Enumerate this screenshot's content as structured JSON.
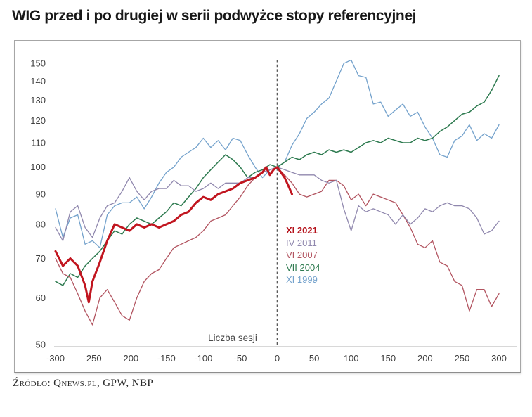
{
  "title": "WIG przed i po drugiej w serii podwyżce stopy referencyjnej",
  "source": "Źródło: Qnews.pl, GPW, NBP",
  "chart_data": {
    "type": "line",
    "xlabel": "Liczba sesji",
    "ylabel": "",
    "yscale": "log",
    "xlim": [
      -300,
      300
    ],
    "ylim": [
      50,
      155
    ],
    "base_value_at_event": 100,
    "event_line_x": 0,
    "grid": "off",
    "legend_position": "center-right of event line",
    "x_ticks": [
      -300,
      -250,
      -200,
      -150,
      -100,
      -50,
      0,
      50,
      100,
      150,
      200,
      250,
      300
    ],
    "y_ticks": [
      50,
      60,
      70,
      80,
      90,
      100,
      110,
      120,
      130,
      140,
      150
    ],
    "legend": [
      {
        "label": "XI 2021",
        "color": "#b5121b",
        "bold": true
      },
      {
        "label": "IV 2011",
        "color": "#9088ae",
        "bold": false
      },
      {
        "label": "VI 2007",
        "color": "#b25460",
        "bold": false
      },
      {
        "label": "VII 2004",
        "color": "#2d7a4f",
        "bold": false
      },
      {
        "label": "XI 1999",
        "color": "#74a2cc",
        "bold": false
      }
    ],
    "series": [
      {
        "name": "XI 1999",
        "color": "#74a2cc",
        "line_width": 1.3,
        "x_start": -300,
        "x_step": 10,
        "y": [
          85,
          76,
          82,
          83,
          74,
          75,
          73,
          83,
          86,
          87,
          87,
          89,
          85,
          89,
          94,
          98,
          100,
          104,
          106,
          108,
          112,
          108,
          111,
          107,
          112,
          111,
          105,
          100,
          96,
          99,
          100,
          102,
          109,
          114,
          121,
          124,
          128,
          131,
          140,
          150,
          152,
          143,
          142,
          128,
          129,
          122,
          125,
          128,
          122,
          124,
          117,
          112,
          105,
          104,
          111,
          113,
          118,
          111,
          114,
          112,
          118
        ]
      },
      {
        "name": "VII 2004",
        "color": "#2d7a4f",
        "line_width": 1.5,
        "x_start": -300,
        "x_step": 10,
        "y": [
          64,
          63,
          66,
          65,
          68,
          70,
          72,
          75,
          78,
          77,
          80,
          82,
          81,
          80,
          82,
          84,
          87,
          86,
          89,
          92,
          96,
          99,
          102,
          105,
          103,
          100,
          96,
          98,
          99,
          101,
          100,
          102,
          104,
          103,
          105,
          106,
          105,
          107,
          106,
          107,
          106,
          108,
          110,
          111,
          110,
          112,
          111,
          110,
          110,
          112,
          111,
          112,
          115,
          117,
          120,
          123,
          124,
          127,
          129,
          135,
          143
        ]
      },
      {
        "name": "VI 2007",
        "color": "#b25460",
        "line_width": 1.3,
        "x_start": -300,
        "x_step": 10,
        "y": [
          70,
          66,
          65,
          61,
          57,
          54,
          60,
          62,
          59,
          56,
          55,
          60,
          64,
          66,
          67,
          70,
          73,
          74,
          75,
          76,
          78,
          81,
          82,
          83,
          86,
          89,
          93,
          96,
          98,
          99,
          100,
          97,
          94,
          90,
          89,
          90,
          91,
          95,
          95,
          93,
          88,
          90,
          86,
          90,
          89,
          88,
          87,
          83,
          79,
          74,
          73,
          75,
          69,
          68,
          64,
          63,
          57,
          62,
          62,
          58,
          61
        ]
      },
      {
        "name": "IV 2011",
        "color": "#9088ae",
        "line_width": 1.3,
        "x_start": -300,
        "x_step": 10,
        "y": [
          79,
          75,
          84,
          86,
          79,
          76,
          82,
          86,
          87,
          91,
          96,
          91,
          88,
          91,
          92,
          92,
          95,
          93,
          93,
          91,
          92,
          94,
          92,
          94,
          94,
          94,
          96,
          96,
          98,
          99,
          100,
          99,
          98,
          97,
          97,
          97,
          95,
          94,
          95,
          85,
          78,
          86,
          84,
          85,
          84,
          83,
          80,
          83,
          80,
          82,
          85,
          84,
          86,
          87,
          86,
          86,
          85,
          82,
          77,
          78,
          81
        ]
      },
      {
        "name": "XI 2021",
        "color": "#c1151f",
        "line_width": 3,
        "x": [
          -300,
          -290,
          -280,
          -270,
          -260,
          -255,
          -250,
          -240,
          -230,
          -220,
          -210,
          -200,
          -190,
          -180,
          -170,
          -160,
          -150,
          -140,
          -130,
          -120,
          -110,
          -100,
          -90,
          -80,
          -70,
          -60,
          -50,
          -40,
          -30,
          -20,
          -15,
          -10,
          -5,
          0,
          5,
          10,
          15,
          20
        ],
        "y": [
          72,
          68,
          70,
          68,
          63,
          59,
          64,
          69,
          75,
          80,
          79,
          78,
          80,
          79,
          80,
          79,
          80,
          81,
          83,
          84,
          87,
          89,
          88,
          90,
          91,
          92,
          94,
          95,
          96,
          98,
          100,
          97,
          99,
          100,
          98,
          96,
          93,
          90
        ]
      }
    ]
  }
}
